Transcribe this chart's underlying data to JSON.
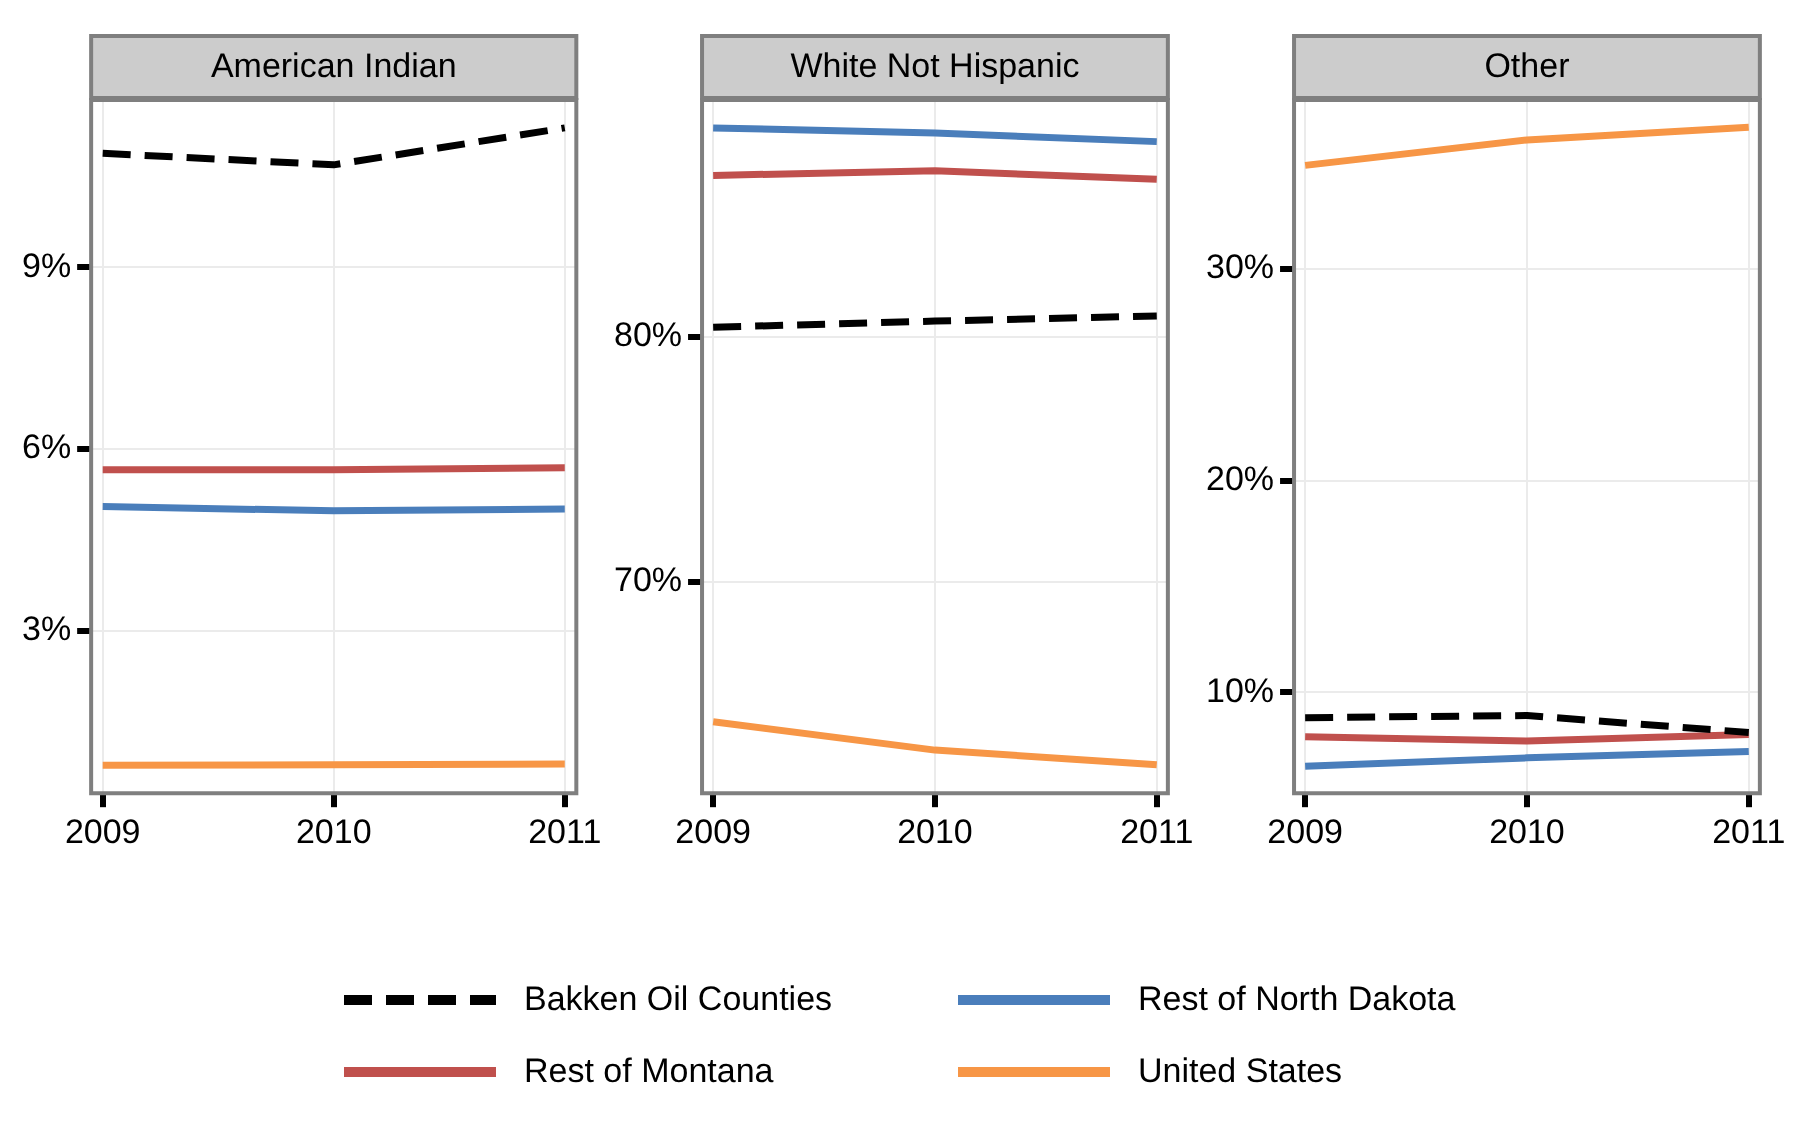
{
  "chart_data": [
    {
      "type": "line",
      "title": "American Indian",
      "x": [
        2009,
        2010,
        2011
      ],
      "xlim": [
        2008.95,
        2011.05
      ],
      "xticks": [
        2009,
        2010,
        2011
      ],
      "ylim": [
        0.32,
        11.76
      ],
      "yticks": [
        {
          "value": 3,
          "label": "3%"
        },
        {
          "value": 6,
          "label": "6%"
        },
        {
          "value": 9,
          "label": "9%"
        }
      ],
      "grid": true,
      "legend": "bottom",
      "series": [
        {
          "name": "Bakken Oil Counties",
          "color": "#000000",
          "line_style": "dashed",
          "values": [
            10.88,
            10.69,
            11.3
          ]
        },
        {
          "name": "Rest of North Dakota",
          "color": "#4a7ebb",
          "values": [
            5.05,
            4.98,
            5.01
          ]
        },
        {
          "name": "Rest of Montana",
          "color": "#c0504d",
          "values": [
            5.66,
            5.66,
            5.69
          ]
        },
        {
          "name": "United States",
          "color": "#f79646",
          "values": [
            0.78,
            0.79,
            0.8
          ]
        }
      ]
    },
    {
      "type": "line",
      "title": "White Not Hispanic",
      "x": [
        2009,
        2010,
        2011
      ],
      "xlim": [
        2008.95,
        2011.05
      ],
      "xticks": [
        2009,
        2010,
        2011
      ],
      "ylim": [
        61.37,
        89.68
      ],
      "yticks": [
        {
          "value": 70,
          "label": "70%"
        },
        {
          "value": 80,
          "label": "80%"
        }
      ],
      "grid": true,
      "series": [
        {
          "color": "#000000",
          "line_style": "dashed",
          "values": [
            80.4,
            80.65,
            80.86
          ]
        },
        {
          "color": "#4a7ebb",
          "values": [
            88.54,
            88.33,
            87.98
          ]
        },
        {
          "color": "#c0504d",
          "values": [
            86.6,
            86.79,
            86.44
          ]
        },
        {
          "color": "#f79646",
          "values": [
            64.29,
            63.13,
            62.53
          ]
        }
      ]
    },
    {
      "type": "line",
      "title": "Other",
      "x": [
        2009,
        2010,
        2011
      ],
      "xlim": [
        2008.95,
        2011.05
      ],
      "xticks": [
        2009,
        2010,
        2011
      ],
      "ylim": [
        5.23,
        37.99
      ],
      "yticks": [
        {
          "value": 10,
          "label": "10%"
        },
        {
          "value": 20,
          "label": "20%"
        },
        {
          "value": 30,
          "label": "30%"
        }
      ],
      "grid": true,
      "series": [
        {
          "color": "#000000",
          "line_style": "dashed",
          "values": [
            8.8,
            8.9,
            8.1
          ]
        },
        {
          "color": "#4a7ebb",
          "values": [
            6.5,
            6.9,
            7.2
          ]
        },
        {
          "color": "#c0504d",
          "values": [
            7.9,
            7.7,
            8
          ]
        },
        {
          "color": "#f79646",
          "values": [
            34.9,
            36.1,
            36.7
          ]
        }
      ]
    }
  ]
}
